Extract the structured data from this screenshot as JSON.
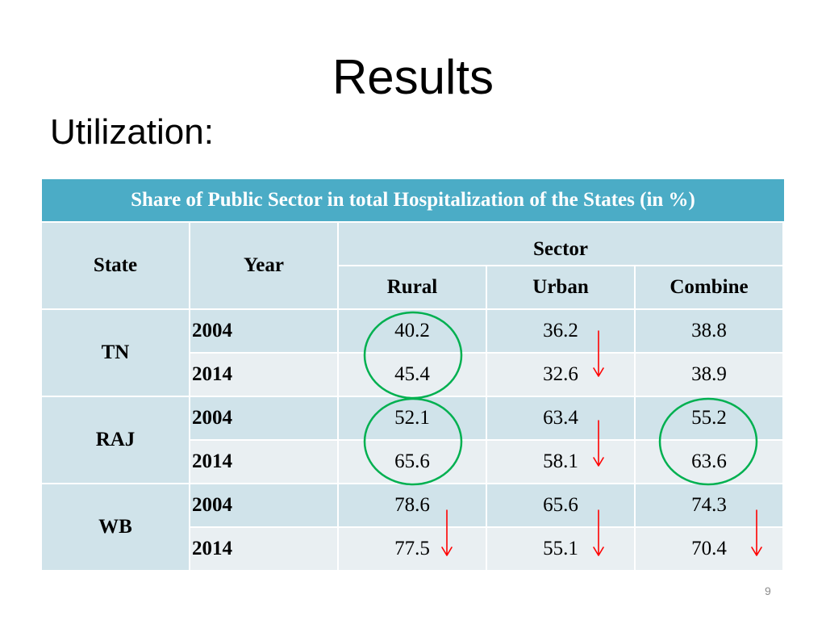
{
  "slide": {
    "title": "Results",
    "subtitle": "Utilization:",
    "page_number": "9"
  },
  "table": {
    "caption": "Share of Public Sector in total Hospitalization of the States (in %)",
    "headers": {
      "state": "State",
      "year": "Year",
      "sector": "Sector",
      "rural": "Rural",
      "urban": "Urban",
      "combine": "Combine"
    },
    "rows": [
      {
        "state": "TN",
        "year": "2004",
        "rural": "40.2",
        "urban": "36.2",
        "combine": "38.8"
      },
      {
        "state": "TN",
        "year": "2014",
        "rural": "45.4",
        "urban": "32.6",
        "combine": "38.9"
      },
      {
        "state": "RAJ",
        "year": "2004",
        "rural": "52.1",
        "urban": "63.4",
        "combine": "55.2"
      },
      {
        "state": "RAJ",
        "year": "2014",
        "rural": "65.6",
        "urban": "58.1",
        "combine": "63.6"
      },
      {
        "state": "WB",
        "year": "2004",
        "rural": "78.6",
        "urban": "65.6",
        "combine": "74.3"
      },
      {
        "state": "WB",
        "year": "2014",
        "rural": "77.5",
        "urban": "55.1",
        "combine": "70.4"
      }
    ]
  },
  "annotations": {
    "circle_color": "#00b050",
    "arrow_color": "#ff0000",
    "circles": [
      "TN-rural",
      "RAJ-rural",
      "RAJ-combine"
    ],
    "decrease_arrows": [
      "TN-urban",
      "RAJ-urban",
      "WB-rural",
      "WB-urban",
      "WB-combine"
    ]
  }
}
